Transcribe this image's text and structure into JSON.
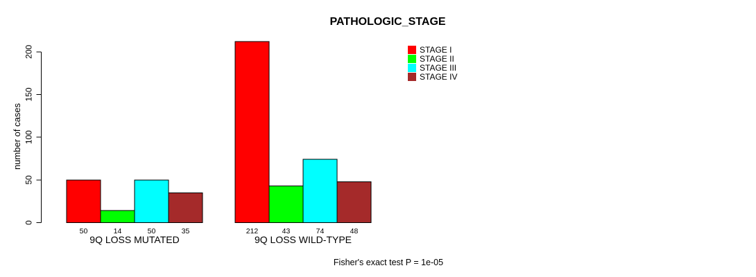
{
  "chart_data": {
    "type": "bar",
    "title": "PATHOLOGIC_STAGE",
    "ylabel": "number of cases",
    "xlabel": "",
    "ylim": [
      0,
      200
    ],
    "yticks": [
      0,
      50,
      100,
      150,
      200
    ],
    "grid": false,
    "legend_position": "top-right-inside",
    "categories": [
      "9Q LOSS MUTATED",
      "9Q LOSS WILD-TYPE"
    ],
    "series": [
      {
        "name": "STAGE I",
        "color": "#FF0000",
        "values": [
          50,
          212
        ]
      },
      {
        "name": "STAGE II",
        "color": "#00FF00",
        "values": [
          14,
          43
        ]
      },
      {
        "name": "STAGE III",
        "color": "#00FFFF",
        "values": [
          50,
          74
        ]
      },
      {
        "name": "STAGE IV",
        "color": "#A52A2A",
        "values": [
          35,
          48
        ]
      }
    ],
    "bar_value_labels": true,
    "annotation": "Fisher's exact test P = 1e-05",
    "axis_color": "#000000",
    "text_color": "#000000",
    "background": "#FFFFFF",
    "bar_outline_color": "#000000"
  }
}
